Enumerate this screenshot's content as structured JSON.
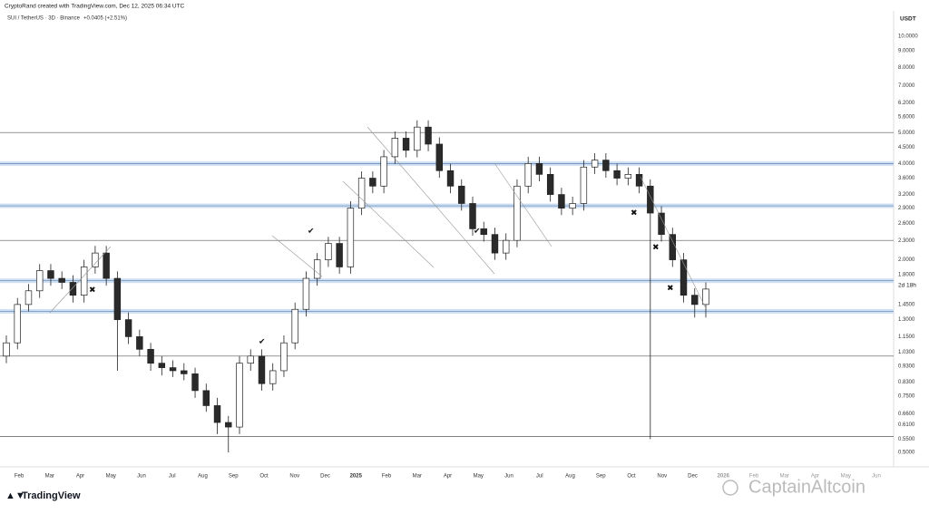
{
  "header": {
    "credit": "CryptoRand created with TradingView.com, Dec 12, 2025 06:34 UTC",
    "symbol": "SUI / TetherUS · 3D · Binance",
    "change": "+0.0405 (+2.51%)"
  },
  "chart_data": {
    "type": "candlestick",
    "currency": "USDT",
    "countdown": "2d 18h",
    "log": true,
    "ylim": [
      0.5,
      10
    ],
    "yticks": [
      {
        "value": 10,
        "label": "10.0000"
      },
      {
        "value": 9,
        "label": "9.0000"
      },
      {
        "value": 8,
        "label": "8.0000"
      },
      {
        "value": 7,
        "label": "7.0000"
      },
      {
        "value": 6.2,
        "label": "6.2000"
      },
      {
        "value": 5.6,
        "label": "5.6000"
      },
      {
        "value": 5,
        "label": "5.0000"
      },
      {
        "value": 4.5,
        "label": "4.5000"
      },
      {
        "value": 4,
        "label": "4.0000"
      },
      {
        "value": 3.6,
        "label": "3.6000"
      },
      {
        "value": 3.2,
        "label": "3.2000"
      },
      {
        "value": 2.9,
        "label": "2.9000"
      },
      {
        "value": 2.6,
        "label": "2.6000"
      },
      {
        "value": 2.3,
        "label": "2.3000"
      },
      {
        "value": 2,
        "label": "2.0000"
      },
      {
        "value": 1.8,
        "label": "1.8000"
      },
      {
        "value": 1.45,
        "label": "1.4500"
      },
      {
        "value": 1.3,
        "label": "1.3000"
      },
      {
        "value": 1.15,
        "label": "1.1500"
      },
      {
        "value": 1.03,
        "label": "1.0300"
      },
      {
        "value": 0.93,
        "label": "0.9300"
      },
      {
        "value": 0.83,
        "label": "0.8300"
      },
      {
        "value": 0.75,
        "label": "0.7500"
      },
      {
        "value": 0.66,
        "label": "0.6600"
      },
      {
        "value": 0.61,
        "label": "0.6100"
      },
      {
        "value": 0.55,
        "label": "0.5500"
      },
      {
        "value": 0.5,
        "label": "0.5000"
      }
    ],
    "categories": [
      "Feb",
      "Mar",
      "Apr",
      "May",
      "Jun",
      "Jul",
      "Aug",
      "Sep",
      "Oct",
      "Nov",
      "Dec",
      "2025",
      "Feb",
      "Mar",
      "Apr",
      "May",
      "Jun",
      "Jul",
      "Aug",
      "Sep",
      "Oct",
      "Nov",
      "Dec",
      "2026",
      "Feb",
      "Mar",
      "Apr",
      "May",
      "Jun"
    ],
    "levels": [
      {
        "value": 5,
        "highlight": false
      },
      {
        "value": 4,
        "highlight": true
      },
      {
        "value": 2.95,
        "highlight": true
      },
      {
        "value": 2.3,
        "highlight": false
      },
      {
        "value": 1.72,
        "highlight": true
      },
      {
        "value": 1.38,
        "highlight": true
      },
      {
        "value": 1,
        "highlight": false
      },
      {
        "value": 0.56,
        "highlight": false
      }
    ],
    "up_color": "#ffffff",
    "down_color": "#2a2a2a",
    "candles": [
      [
        1.0,
        1.16,
        0.95,
        1.1
      ],
      [
        1.1,
        1.52,
        1.05,
        1.45
      ],
      [
        1.45,
        1.68,
        1.38,
        1.6
      ],
      [
        1.6,
        1.94,
        1.52,
        1.85
      ],
      [
        1.85,
        1.94,
        1.66,
        1.75
      ],
      [
        1.75,
        1.84,
        1.62,
        1.7
      ],
      [
        1.7,
        1.79,
        1.47,
        1.55
      ],
      [
        1.55,
        2.0,
        1.47,
        1.9
      ],
      [
        1.9,
        2.21,
        1.81,
        2.1
      ],
      [
        2.1,
        2.21,
        1.66,
        1.75
      ],
      [
        1.75,
        1.84,
        0.9,
        1.3
      ],
      [
        1.3,
        1.37,
        1.09,
        1.15
      ],
      [
        1.15,
        1.21,
        1.0,
        1.05
      ],
      [
        1.05,
        1.1,
        0.9,
        0.95
      ],
      [
        0.95,
        1.0,
        0.87,
        0.92
      ],
      [
        0.92,
        0.97,
        0.86,
        0.9
      ],
      [
        0.9,
        0.95,
        0.84,
        0.88
      ],
      [
        0.88,
        0.92,
        0.74,
        0.78
      ],
      [
        0.78,
        0.82,
        0.67,
        0.7
      ],
      [
        0.7,
        0.74,
        0.57,
        0.62
      ],
      [
        0.62,
        0.65,
        0.5,
        0.6
      ],
      [
        0.6,
        1.0,
        0.57,
        0.95
      ],
      [
        0.95,
        1.05,
        0.9,
        1.0
      ],
      [
        1.0,
        1.05,
        0.78,
        0.82
      ],
      [
        0.82,
        0.95,
        0.78,
        0.9
      ],
      [
        0.9,
        1.16,
        0.86,
        1.1
      ],
      [
        1.1,
        1.47,
        1.05,
        1.4
      ],
      [
        1.4,
        1.84,
        1.33,
        1.75
      ],
      [
        1.75,
        2.1,
        1.66,
        2.0
      ],
      [
        2.0,
        2.36,
        1.9,
        2.25
      ],
      [
        2.25,
        2.36,
        1.81,
        1.9
      ],
      [
        1.9,
        3.05,
        1.81,
        2.9
      ],
      [
        2.9,
        3.78,
        2.76,
        3.6
      ],
      [
        3.6,
        3.78,
        3.23,
        3.4
      ],
      [
        3.4,
        4.41,
        3.23,
        4.2
      ],
      [
        4.2,
        5.04,
        3.99,
        4.8
      ],
      [
        4.8,
        5.04,
        4.18,
        4.4
      ],
      [
        4.4,
        5.46,
        4.18,
        5.2
      ],
      [
        5.2,
        5.46,
        4.37,
        4.6
      ],
      [
        4.6,
        4.83,
        3.61,
        3.8
      ],
      [
        3.8,
        3.99,
        3.23,
        3.4
      ],
      [
        3.4,
        3.57,
        2.85,
        3.0
      ],
      [
        3.0,
        3.15,
        2.38,
        2.5
      ],
      [
        2.5,
        2.63,
        2.28,
        2.4
      ],
      [
        2.4,
        2.52,
        2.0,
        2.1
      ],
      [
        2.1,
        2.42,
        2.0,
        2.3
      ],
      [
        2.3,
        3.57,
        2.19,
        3.4
      ],
      [
        3.4,
        4.2,
        3.23,
        4.0
      ],
      [
        4.0,
        4.2,
        3.52,
        3.7
      ],
      [
        3.7,
        3.89,
        3.04,
        3.2
      ],
      [
        3.2,
        3.36,
        2.76,
        2.9
      ],
      [
        2.9,
        3.15,
        2.76,
        3.0
      ],
      [
        3.0,
        4.1,
        2.85,
        3.9
      ],
      [
        3.9,
        4.31,
        3.71,
        4.1
      ],
      [
        4.1,
        4.31,
        3.61,
        3.8
      ],
      [
        3.8,
        3.99,
        3.42,
        3.6
      ],
      [
        3.6,
        3.89,
        3.42,
        3.7
      ],
      [
        3.7,
        3.89,
        3.23,
        3.4
      ],
      [
        3.4,
        3.57,
        0.55,
        2.8
      ],
      [
        2.8,
        2.94,
        2.28,
        2.4
      ],
      [
        2.4,
        2.52,
        1.9,
        2.0
      ],
      [
        2.0,
        2.1,
        1.47,
        1.55
      ],
      [
        1.55,
        1.63,
        1.32,
        1.45
      ],
      [
        1.45,
        1.7,
        1.32,
        1.62
      ]
    ]
  },
  "footer": {
    "brand": "TradingView",
    "watermark": "CaptainAltcoin"
  }
}
